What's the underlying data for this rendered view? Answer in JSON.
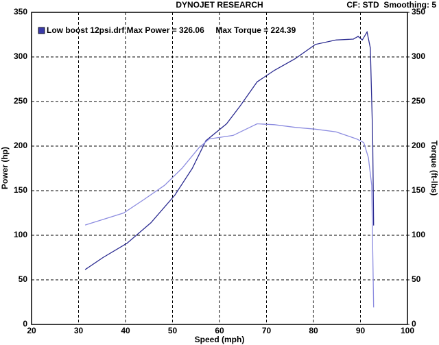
{
  "chart_data": {
    "type": "line",
    "title": "DYNOJET RESEARCH",
    "subtitle": "CF: STD  Smoothing: 5",
    "legend": {
      "text": "Low boost 12psi.drf Max Power = 326.06     Max Torque = 224.39",
      "color": "#3a3aa8"
    },
    "xlabel": "Speed (mph)",
    "ylabel": "Power (hp)",
    "y2label": "Torque (ft-lbs)",
    "xlim": [
      20,
      100
    ],
    "xticks": [
      20,
      30,
      40,
      50,
      60,
      70,
      80,
      90,
      100
    ],
    "ylim": [
      0,
      350
    ],
    "yticks": [
      0,
      50,
      100,
      150,
      200,
      250,
      300,
      350
    ],
    "y2lim": [
      0,
      350
    ],
    "y2ticks": [
      0,
      50,
      100,
      150,
      200,
      250,
      300,
      350
    ],
    "grid": true,
    "series": [
      {
        "color": "#2a2a90",
        "x": [
          31.4,
          35.2,
          40.3,
          45.4,
          50.5,
          54.2,
          57.1,
          61.5,
          64.4,
          68.0,
          71.7,
          76.1,
          80.4,
          84.8,
          88.5,
          89.5,
          90.4,
          91.4,
          92.1,
          92.6,
          92.8
        ],
        "values": [
          61.5,
          75,
          91,
          114,
          145,
          175,
          206,
          225,
          245,
          272,
          285,
          298,
          314,
          319,
          320,
          323,
          319,
          328,
          310,
          210,
          111
        ]
      },
      {
        "color": "#8c8ce0",
        "axis": "y2",
        "x": [
          31.4,
          35.2,
          39.6,
          43.9,
          48.3,
          52.0,
          55.6,
          57.8,
          62.9,
          68.0,
          71.7,
          76.1,
          80.4,
          84.8,
          89.2,
          90.7,
          91.7,
          92.4,
          92.8
        ],
        "values": [
          111.5,
          117.7,
          125,
          140,
          156,
          175,
          198,
          208,
          212,
          225,
          224,
          221,
          219,
          216,
          208,
          204,
          187,
          156,
          19
        ]
      }
    ]
  }
}
